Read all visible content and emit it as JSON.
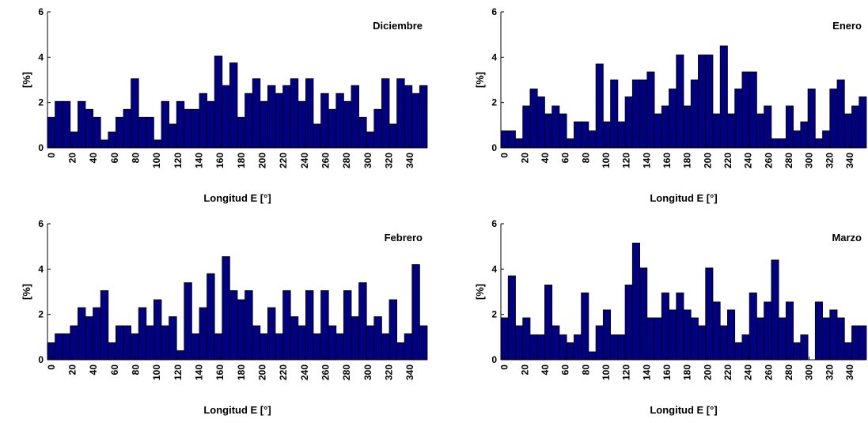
{
  "chart_data": [
    {
      "type": "histogram",
      "title": "Diciembre",
      "x_label": "Longitud E [°]",
      "y_label": "[%]",
      "color": "#000080",
      "bins": [
        -3.6,
        3.6,
        10.8,
        18,
        25.2,
        32.4,
        39.6,
        46.8,
        54,
        61.2,
        68.4,
        75.6,
        82.8,
        90,
        97.2,
        104.4,
        111.6,
        118.8,
        126,
        133.2,
        140.4,
        147.6,
        154.8,
        162,
        169.2,
        176.4,
        183.6,
        190.8,
        198,
        205.2,
        212.4,
        219.6,
        226.8,
        234,
        241.2,
        248.4,
        255.6,
        262.8,
        270,
        277.2,
        284.4,
        291.6,
        298.8,
        306,
        313.2,
        320.4,
        327.6,
        334.8,
        342,
        349.2,
        356.4
      ],
      "values": [
        1.35,
        2.05,
        2.05,
        0.7,
        2.05,
        1.7,
        1.35,
        0.35,
        0.7,
        1.35,
        1.7,
        3.05,
        1.35,
        1.35,
        0.35,
        2.05,
        1.05,
        2.05,
        1.7,
        1.7,
        2.4,
        2.05,
        4.05,
        2.75,
        3.75,
        1.35,
        2.4,
        3.05,
        2.05,
        2.75,
        2.4,
        2.75,
        3.05,
        2.05,
        3.05,
        1.05,
        2.4,
        1.7,
        2.4,
        2.05,
        2.75,
        1.35,
        0.7,
        1.7,
        3.05,
        1.05,
        3.05,
        2.75,
        2.4,
        2.75
      ],
      "xlim": [
        -3.6,
        356.4
      ],
      "ylim": [
        0,
        6
      ],
      "yticks": [
        0,
        2,
        4,
        6
      ],
      "xticks": [
        0,
        20,
        40,
        60,
        80,
        100,
        120,
        140,
        160,
        180,
        200,
        220,
        240,
        260,
        280,
        300,
        320,
        340
      ]
    },
    {
      "type": "histogram",
      "title": "Enero",
      "x_label": "Longitud E [°]",
      "y_label": "[%]",
      "color": "#000080",
      "bins": [
        -3.6,
        3.6,
        10.8,
        18,
        25.2,
        32.4,
        39.6,
        46.8,
        54,
        61.2,
        68.4,
        75.6,
        82.8,
        90,
        97.2,
        104.4,
        111.6,
        118.8,
        126,
        133.2,
        140.4,
        147.6,
        154.8,
        162,
        169.2,
        176.4,
        183.6,
        190.8,
        198,
        205.2,
        212.4,
        219.6,
        226.8,
        234,
        241.2,
        248.4,
        255.6,
        262.8,
        270,
        277.2,
        284.4,
        291.6,
        298.8,
        306,
        313.2,
        320.4,
        327.6,
        334.8,
        342,
        349.2,
        356.4
      ],
      "values": [
        0.75,
        0.75,
        0.4,
        1.85,
        2.6,
        2.25,
        1.5,
        1.85,
        1.5,
        0.4,
        1.15,
        1.15,
        0.75,
        3.7,
        1.15,
        3.0,
        1.15,
        2.25,
        3.0,
        3.0,
        3.35,
        1.5,
        1.85,
        2.6,
        4.1,
        1.85,
        3.0,
        4.1,
        4.1,
        1.5,
        4.5,
        1.5,
        2.6,
        3.35,
        3.35,
        1.5,
        1.85,
        0.4,
        0.4,
        1.85,
        0.75,
        1.15,
        2.6,
        0.4,
        0.75,
        2.6,
        3.0,
        1.5,
        1.85,
        2.25
      ],
      "xlim": [
        -3.6,
        356.4
      ],
      "ylim": [
        0,
        6
      ],
      "yticks": [
        0,
        2,
        4,
        6
      ],
      "xticks": [
        0,
        20,
        40,
        60,
        80,
        100,
        120,
        140,
        160,
        180,
        200,
        220,
        240,
        260,
        280,
        300,
        320,
        340
      ]
    },
    {
      "type": "histogram",
      "title": "Febrero",
      "x_label": "Longitud E [°]",
      "y_label": "[%]",
      "color": "#000080",
      "bins": [
        -3.6,
        3.6,
        10.8,
        18,
        25.2,
        32.4,
        39.6,
        46.8,
        54,
        61.2,
        68.4,
        75.6,
        82.8,
        90,
        97.2,
        104.4,
        111.6,
        118.8,
        126,
        133.2,
        140.4,
        147.6,
        154.8,
        162,
        169.2,
        176.4,
        183.6,
        190.8,
        198,
        205.2,
        212.4,
        219.6,
        226.8,
        234,
        241.2,
        248.4,
        255.6,
        262.8,
        270,
        277.2,
        284.4,
        291.6,
        298.8,
        306,
        313.2,
        320.4,
        327.6,
        334.8,
        342,
        349.2,
        356.4
      ],
      "values": [
        0.75,
        1.15,
        1.15,
        1.5,
        2.3,
        1.9,
        2.3,
        3.05,
        0.75,
        1.5,
        1.5,
        1.15,
        2.3,
        1.5,
        2.65,
        1.5,
        1.9,
        0.4,
        3.4,
        1.15,
        2.3,
        3.8,
        1.15,
        4.55,
        3.05,
        2.65,
        3.05,
        1.5,
        1.15,
        2.3,
        1.15,
        3.05,
        1.9,
        1.5,
        3.05,
        1.15,
        3.05,
        1.5,
        1.15,
        3.05,
        1.9,
        3.4,
        1.5,
        1.9,
        1.15,
        2.65,
        0.75,
        1.15,
        4.2,
        1.5
      ],
      "xlim": [
        -3.6,
        356.4
      ],
      "ylim": [
        0,
        6
      ],
      "yticks": [
        0,
        2,
        4,
        6
      ],
      "xticks": [
        0,
        20,
        40,
        60,
        80,
        100,
        120,
        140,
        160,
        180,
        200,
        220,
        240,
        260,
        280,
        300,
        320,
        340
      ]
    },
    {
      "type": "histogram",
      "title": "Marzo",
      "x_label": "Longitud E [°]",
      "y_label": "[%]",
      "color": "#000080",
      "bins": [
        -3.6,
        3.6,
        10.8,
        18,
        25.2,
        32.4,
        39.6,
        46.8,
        54,
        61.2,
        68.4,
        75.6,
        82.8,
        90,
        97.2,
        104.4,
        111.6,
        118.8,
        126,
        133.2,
        140.4,
        147.6,
        154.8,
        162,
        169.2,
        176.4,
        183.6,
        190.8,
        198,
        205.2,
        212.4,
        219.6,
        226.8,
        234,
        241.2,
        248.4,
        255.6,
        262.8,
        270,
        277.2,
        284.4,
        291.6,
        298.8,
        306,
        313.2,
        320.4,
        327.6,
        334.8,
        342,
        349.2,
        356.4
      ],
      "values": [
        1.85,
        3.7,
        1.5,
        1.85,
        1.1,
        1.1,
        3.3,
        1.5,
        1.1,
        0.75,
        1.1,
        2.95,
        0.35,
        1.5,
        2.2,
        1.1,
        1.1,
        3.3,
        5.15,
        4.05,
        1.85,
        1.85,
        2.95,
        2.2,
        2.95,
        2.2,
        1.85,
        1.5,
        4.05,
        2.55,
        1.5,
        2.2,
        0.75,
        1.1,
        2.95,
        1.85,
        2.55,
        4.4,
        1.85,
        2.55,
        0.75,
        1.1,
        0,
        2.55,
        1.85,
        2.2,
        1.85,
        0.75,
        1.5,
        1.5
      ],
      "xlim": [
        -3.6,
        356.4
      ],
      "ylim": [
        0,
        6
      ],
      "yticks": [
        0,
        2,
        4,
        6
      ],
      "xticks": [
        0,
        20,
        40,
        60,
        80,
        100,
        120,
        140,
        160,
        180,
        200,
        220,
        240,
        260,
        280,
        300,
        320,
        340
      ]
    }
  ]
}
